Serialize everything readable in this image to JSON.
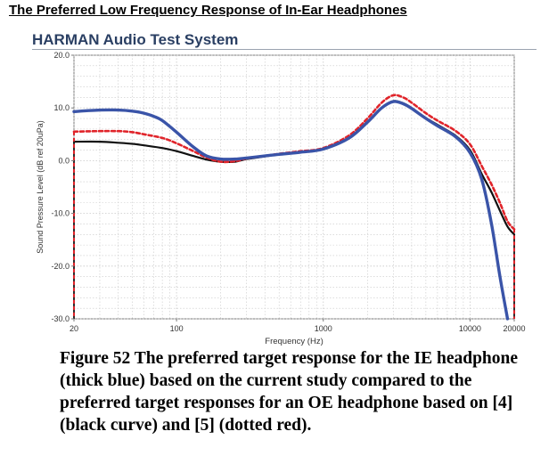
{
  "page_title": "The Preferred Low Frequency Response of In-Ear Headphones",
  "system_title": "HARMAN Audio Test System",
  "caption": "Figure 52 The preferred target response for the IE headphone (thick blue) based on the current study compared to the preferred target responses for an OE headphone based on [4] (black curve) and [5] (dotted red).",
  "colors": {
    "blue": "#3a54a8",
    "black": "#111111",
    "red": "#e0242a",
    "grid": "#c8c8c8"
  },
  "chart_data": {
    "type": "line",
    "xlabel": "Frequency (Hz)",
    "ylabel": "Sound Pressure Level (dB ref 20uPa)",
    "xscale": "log",
    "xlim": [
      20,
      20000
    ],
    "ylim": [
      -30,
      20
    ],
    "xticks": [
      20,
      100,
      1000,
      10000,
      20000
    ],
    "xtick_labels": [
      "20",
      "100",
      "1000",
      "10000",
      "20000"
    ],
    "yticks": [
      -30,
      -20,
      -10,
      0,
      10,
      20
    ],
    "ytick_labels": [
      "-30.0",
      "-20.0",
      "-10.0",
      "0.0",
      "10.0",
      "20.0"
    ],
    "grid": true,
    "series": [
      {
        "style": "thick-blue",
        "x": [
          20,
          30,
          40,
          50,
          60,
          70,
          80,
          100,
          130,
          160,
          200,
          250,
          300,
          400,
          500,
          700,
          1000,
          1500,
          2000,
          2500,
          3000,
          3500,
          4000,
          5000,
          6000,
          8000,
          10000,
          12000,
          14000,
          16000,
          18000
        ],
        "y": [
          9.3,
          9.6,
          9.6,
          9.4,
          9.0,
          8.4,
          7.6,
          5.4,
          2.6,
          0.9,
          0.3,
          0.3,
          0.5,
          0.9,
          1.2,
          1.6,
          2.2,
          4.3,
          7.3,
          10.0,
          11.2,
          10.8,
          9.9,
          8.0,
          6.6,
          4.5,
          1.5,
          -3.5,
          -12.0,
          -22.0,
          -30.0
        ]
      },
      {
        "style": "black",
        "x": [
          20,
          30,
          40,
          50,
          60,
          80,
          100,
          130,
          160,
          200,
          250,
          300,
          400,
          500,
          700,
          1000,
          1500,
          2000,
          2500,
          3000,
          3500,
          4000,
          5000,
          6000,
          8000,
          10000,
          12000,
          14000,
          16000,
          18000,
          20000
        ],
        "y": [
          3.6,
          3.6,
          3.4,
          3.2,
          2.9,
          2.4,
          1.8,
          0.9,
          0.2,
          -0.2,
          -0.2,
          0.3,
          0.8,
          1.2,
          1.6,
          2.2,
          4.3,
          7.3,
          10.0,
          11.3,
          10.9,
          10.0,
          8.1,
          6.8,
          4.7,
          2.0,
          -2.5,
          -6.0,
          -9.5,
          -12.5,
          -14.0
        ]
      },
      {
        "style": "dotted-red",
        "x": [
          20,
          30,
          40,
          50,
          60,
          80,
          100,
          130,
          160,
          200,
          250,
          300,
          400,
          500,
          700,
          1000,
          1500,
          2000,
          2500,
          3000,
          3500,
          4000,
          5000,
          6000,
          8000,
          10000,
          12000,
          14000,
          16000,
          18000,
          20000
        ],
        "y": [
          5.5,
          5.6,
          5.6,
          5.4,
          5.0,
          4.3,
          3.3,
          1.8,
          0.6,
          -0.2,
          -0.1,
          0.4,
          0.9,
          1.3,
          1.8,
          2.4,
          4.8,
          8.0,
          11.0,
          12.4,
          12.0,
          11.0,
          9.0,
          7.6,
          5.6,
          3.1,
          -1.0,
          -4.5,
          -8.0,
          -11.5,
          -13.0
        ]
      }
    ]
  }
}
